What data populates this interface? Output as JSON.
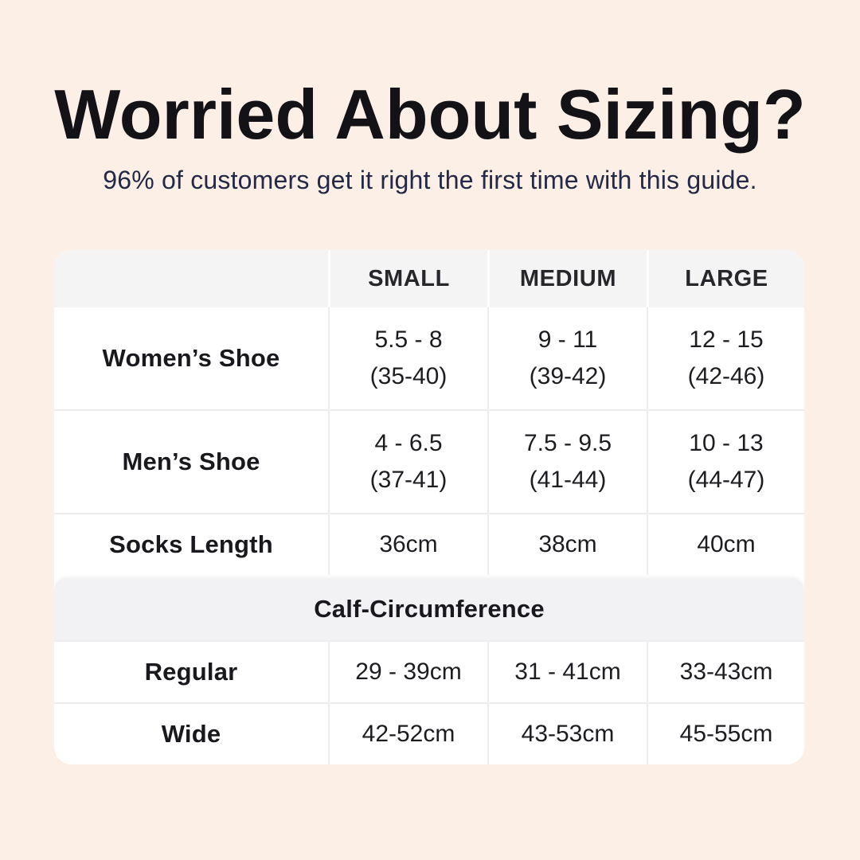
{
  "page": {
    "title": "Worried About Sizing?",
    "subtitle": "96% of customers get it right the first time with this guide."
  },
  "colors": {
    "background": "#fcefe6",
    "table_background": "#ffffff",
    "header_background": "#f4f4f5",
    "divider": "#ededef",
    "title_text": "#121217",
    "subtitle_text": "#232946",
    "cell_text": "#1d1d21"
  },
  "chart_data": {
    "type": "table",
    "title": "Worried About Sizing?",
    "subtitle": "96% of customers get it right the first time with this guide.",
    "columns": [
      "",
      "SMALL",
      "MEDIUM",
      "LARGE"
    ],
    "sections": [
      {
        "header": null,
        "rows": [
          {
            "label": "Women’s Shoe",
            "values": [
              "5.5 - 8\n(35-40)",
              "9 - 11\n(39-42)",
              "12 - 15\n(42-46)"
            ]
          },
          {
            "label": "Men’s Shoe",
            "values": [
              "4 - 6.5\n(37-41)",
              "7.5 - 9.5\n(41-44)",
              "10 - 13\n(44-47)"
            ]
          },
          {
            "label": "Socks Length",
            "values": [
              "36cm",
              "38cm",
              "40cm"
            ]
          }
        ]
      },
      {
        "header": "Calf-Circumference",
        "rows": [
          {
            "label": "Regular",
            "values": [
              "29 - 39cm",
              "31 - 41cm",
              "33-43cm"
            ]
          },
          {
            "label": "Wide",
            "values": [
              "42-52cm",
              "43-53cm",
              "45-55cm"
            ]
          }
        ]
      }
    ]
  }
}
